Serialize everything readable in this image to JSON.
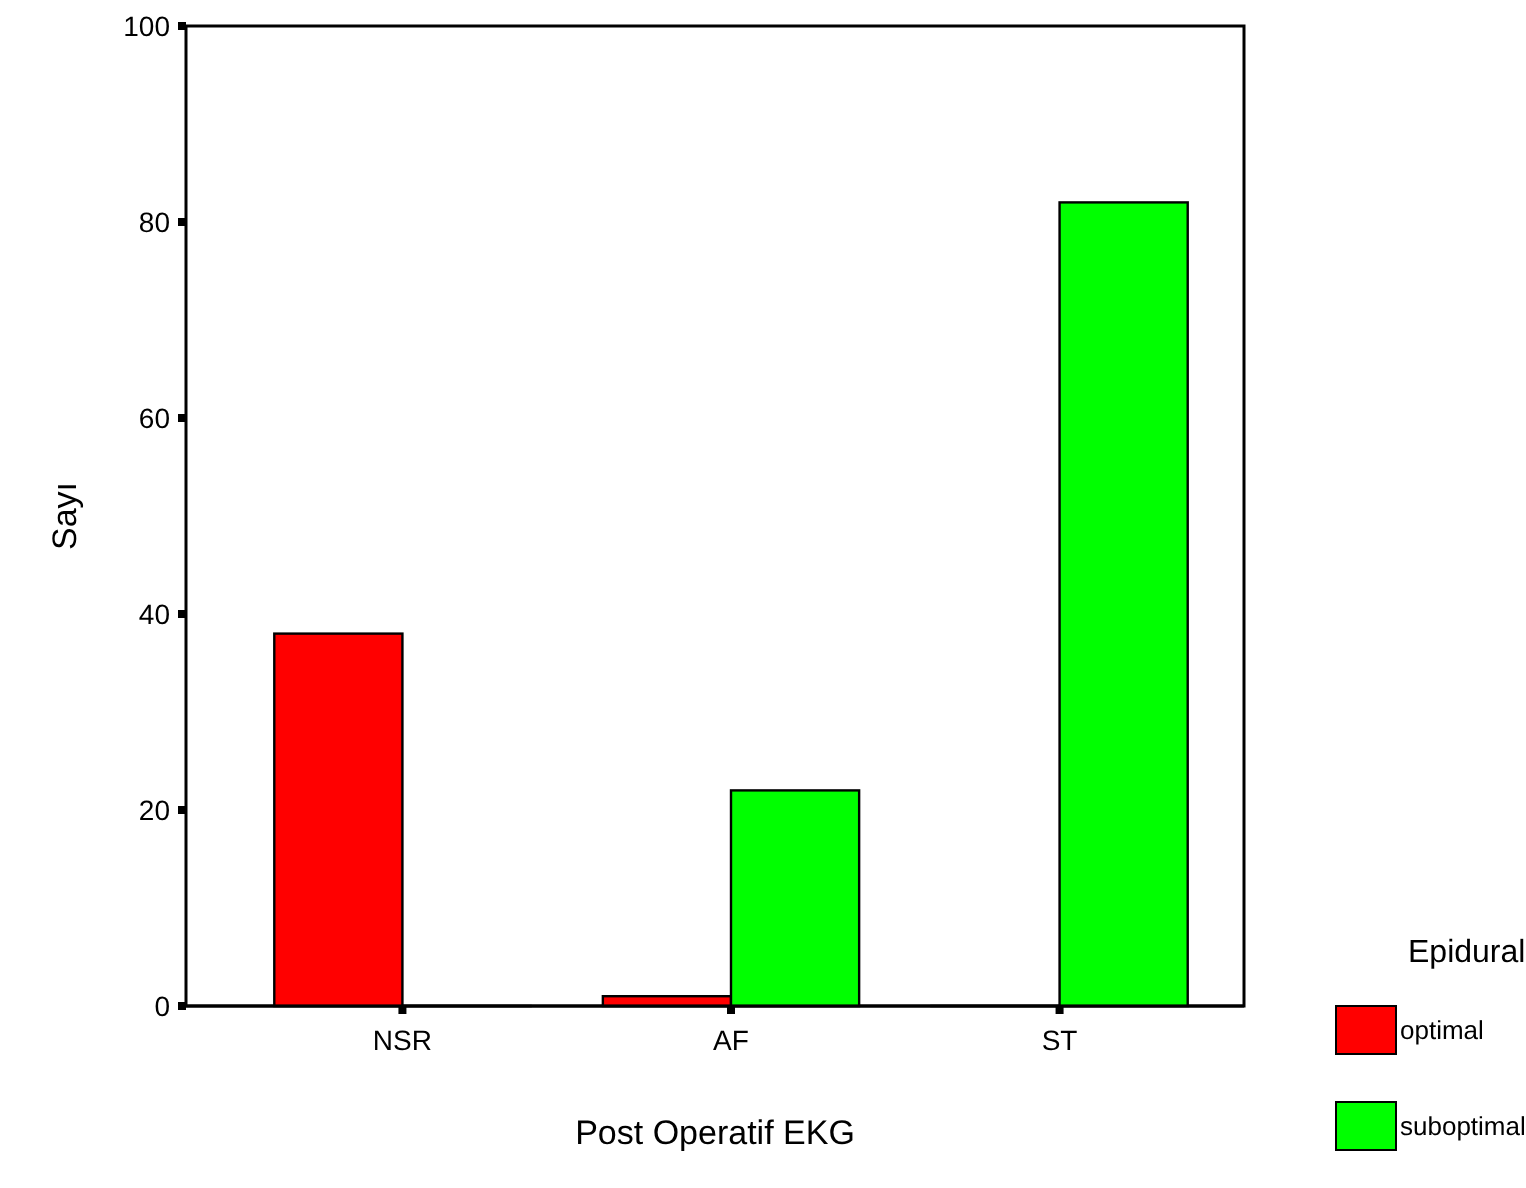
{
  "chart_data": {
    "type": "bar",
    "xlabel": "Post Operatif EKG",
    "ylabel": "Sayı",
    "legend_title": "Epidural",
    "categories": [
      "NSR",
      "AF",
      "ST"
    ],
    "series": [
      {
        "name": "optimal",
        "color": "#ff0000",
        "values": [
          38,
          1,
          0
        ]
      },
      {
        "name": "suboptimal",
        "color": "#00ff00",
        "values": [
          0,
          22,
          82
        ]
      }
    ],
    "ylim": [
      0,
      100
    ],
    "yticks": [
      0,
      20,
      40,
      60,
      80,
      100
    ],
    "grid": false,
    "legend": "right"
  }
}
